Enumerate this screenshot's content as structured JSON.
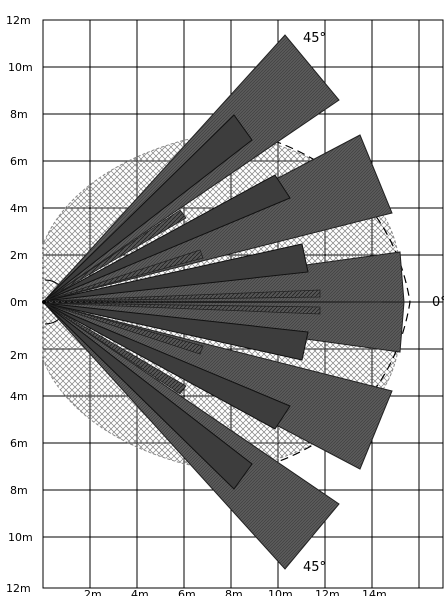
{
  "y_axis_labels": [
    "12m",
    "10m",
    "8m",
    "6m",
    "4m",
    "2m",
    "0m",
    "2m",
    "4m",
    "6m",
    "8m",
    "10m",
    "12m"
  ],
  "x_axis_labels": [
    "2m",
    "4m",
    "6m",
    "8m",
    "10m",
    "12m",
    "14m"
  ],
  "angle_labels": {
    "top": "45°",
    "bottom": "45°",
    "right": "0°"
  },
  "colors": {
    "grid": "#000000",
    "beam_fill": "#4a4a4a",
    "hatch": "#7a7a7a",
    "background": "#ffffff"
  },
  "icon_names": [
    "sensor-origin-icon"
  ]
}
